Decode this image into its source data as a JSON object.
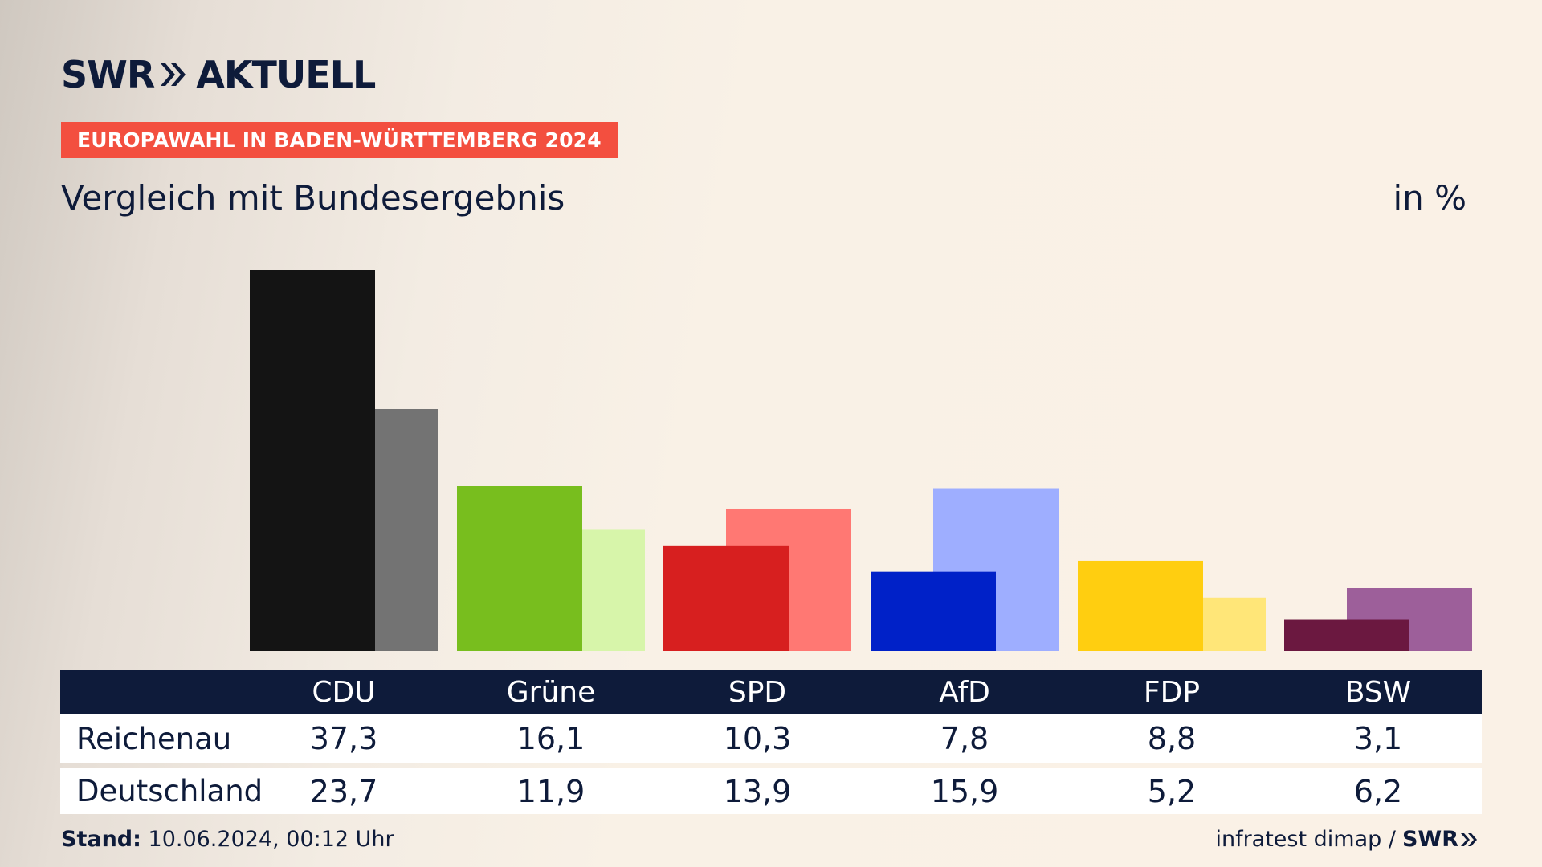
{
  "brand": {
    "logo_text_1": "SWR",
    "logo_text_2": "AKTUELL"
  },
  "header": {
    "tag": "EUROPAWAHL IN BADEN-WÜRTTEMBERG 2024",
    "subtitle": "Vergleich mit Bundesergebnis",
    "unit": "in %"
  },
  "colors": {
    "navy": "#0e1b3a",
    "tag_red": "#f34f3f"
  },
  "chart_data": {
    "type": "bar",
    "categories": [
      "CDU",
      "Grüne",
      "SPD",
      "AfD",
      "FDP",
      "BSW"
    ],
    "series": [
      {
        "name": "Reichenau",
        "values": [
          37.3,
          16.1,
          10.3,
          7.8,
          8.8,
          3.1
        ],
        "colors": [
          "#141414",
          "#78be1e",
          "#d71f1f",
          "#0021c8",
          "#ffce10",
          "#6b1840"
        ]
      },
      {
        "name": "Deutschland",
        "values": [
          23.7,
          11.9,
          13.9,
          15.9,
          5.2,
          6.2
        ],
        "colors": [
          "#737373",
          "#d7f5aa",
          "#ff7873",
          "#9eaeff",
          "#ffe678",
          "#9d5f9a"
        ]
      }
    ],
    "ylim": [
      0,
      37.3
    ]
  },
  "table": {
    "rows": [
      {
        "label": "Reichenau",
        "values": [
          "37,3",
          "16,1",
          "10,3",
          "7,8",
          "8,8",
          "3,1"
        ]
      },
      {
        "label": "Deutschland",
        "values": [
          "23,7",
          "11,9",
          "13,9",
          "15,9",
          "5,2",
          "6,2"
        ]
      }
    ]
  },
  "footer": {
    "stand_label": "Stand:",
    "stand_value": "10.06.2024, 00:12 Uhr",
    "source": "infratest dimap /",
    "source_logo": "SWR"
  }
}
